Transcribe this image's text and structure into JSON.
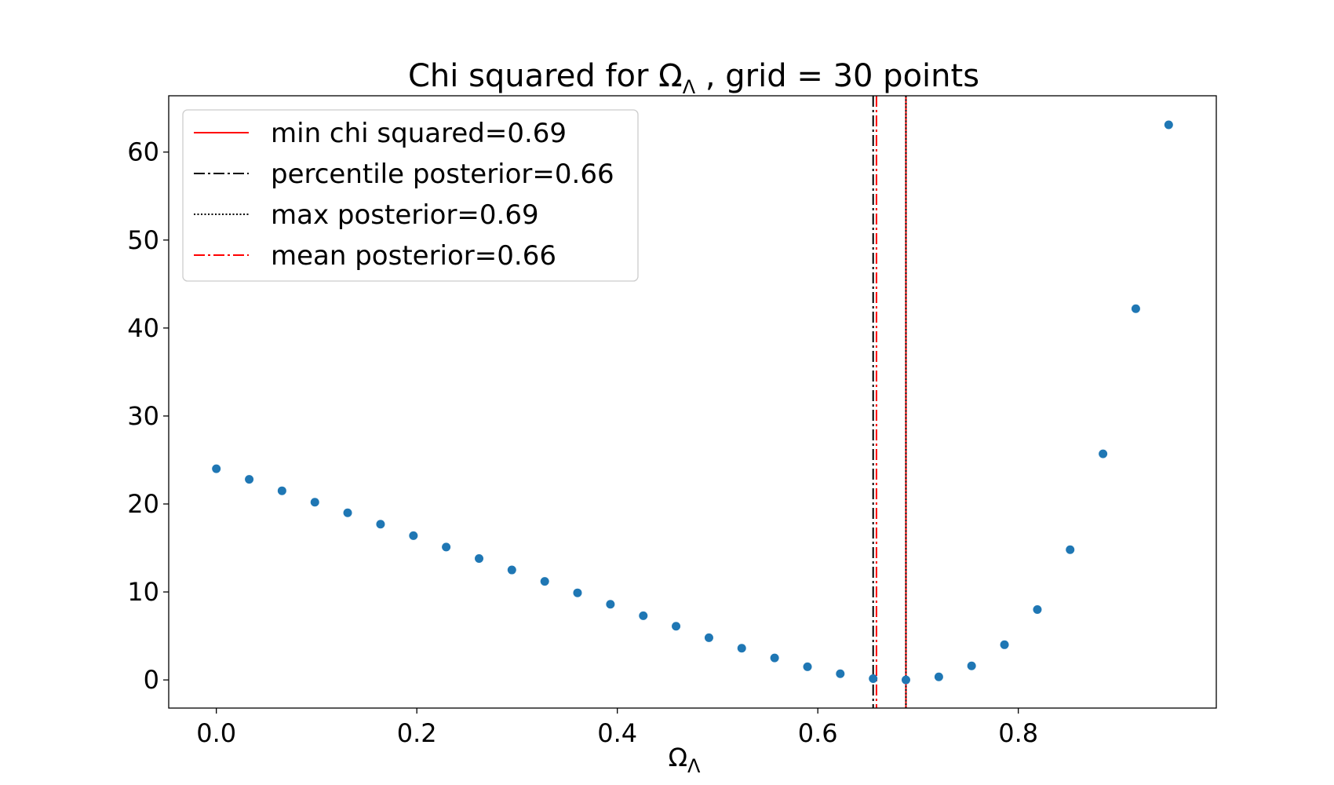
{
  "chart_data": {
    "type": "scatter",
    "title": {
      "prefix": "Chi squared for Ω",
      "subscript": "Λ",
      "suffix": " , grid = 30 points"
    },
    "xlabel": {
      "main": "Ω",
      "subscript": "Λ"
    },
    "ylabel": "",
    "xlim": [
      -0.0475,
      0.9975
    ],
    "ylim": [
      -3.2,
      66.4
    ],
    "xticks": [
      0.0,
      0.2,
      0.4,
      0.6,
      0.8
    ],
    "xtick_labels": [
      "0.0",
      "0.2",
      "0.4",
      "0.6",
      "0.8"
    ],
    "yticks": [
      0,
      10,
      20,
      30,
      40,
      50,
      60
    ],
    "ytick_labels": [
      "0",
      "10",
      "20",
      "30",
      "40",
      "50",
      "60"
    ],
    "grid": false,
    "legend_position": "top-left",
    "point_color": "#1f77b4",
    "series": [
      {
        "x": [
          0.0,
          0.0328,
          0.0655,
          0.0983,
          0.131,
          0.1638,
          0.1966,
          0.2293,
          0.2621,
          0.2948,
          0.3276,
          0.3603,
          0.3931,
          0.4259,
          0.4586,
          0.4914,
          0.5241,
          0.5569,
          0.5897,
          0.6224,
          0.6552,
          0.6879,
          0.7207,
          0.7534,
          0.7862,
          0.819,
          0.8517,
          0.8845,
          0.9172,
          0.95
        ],
        "y": [
          24.0,
          22.8,
          21.5,
          20.2,
          19.0,
          17.7,
          16.4,
          15.1,
          13.8,
          12.5,
          11.2,
          9.9,
          8.6,
          7.3,
          6.1,
          4.8,
          3.6,
          2.5,
          1.5,
          0.7,
          0.15,
          0.0,
          0.35,
          1.6,
          4.0,
          8.0,
          14.8,
          25.7,
          42.2,
          63.1
        ]
      }
    ],
    "vlines": [
      {
        "label": "min chi squared=0.69",
        "x": 0.6879,
        "color": "#ff0000",
        "style": "solid"
      },
      {
        "label": "percentile posterior=0.66",
        "x": 0.6552,
        "color": "#000000",
        "style": "dashdot"
      },
      {
        "label": "max posterior=0.69",
        "x": 0.6879,
        "color": "#000000",
        "style": "dotted"
      },
      {
        "label": "mean posterior=0.66",
        "x": 0.6585,
        "color": "#ff0000",
        "style": "dashdot"
      }
    ]
  }
}
